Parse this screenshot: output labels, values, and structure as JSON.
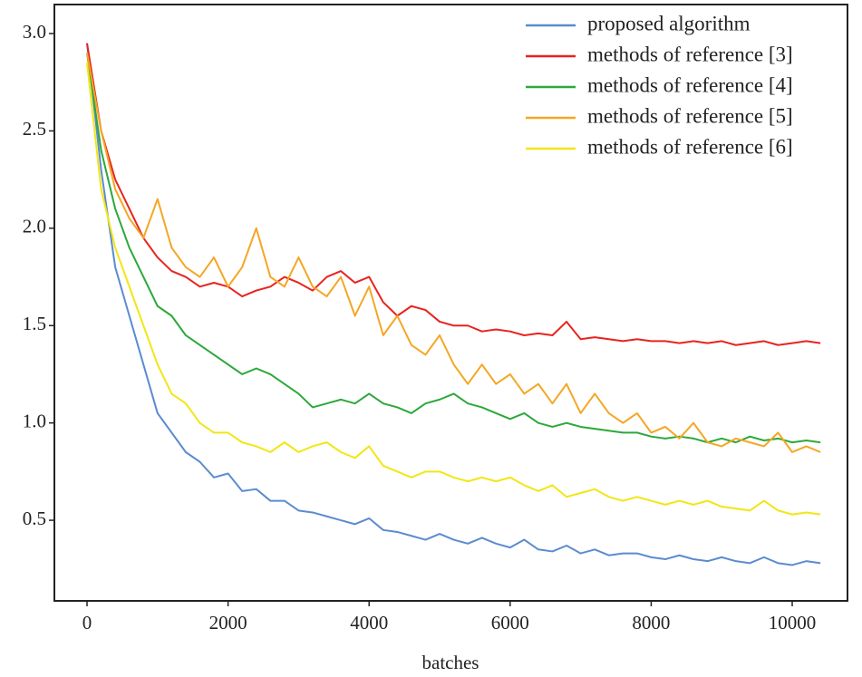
{
  "chart_data": {
    "type": "line",
    "x_label": "batches",
    "x": [
      0,
      200,
      400,
      600,
      800,
      1000,
      1200,
      1400,
      1600,
      1800,
      2000,
      2200,
      2400,
      2600,
      2800,
      3000,
      3200,
      3400,
      3600,
      3800,
      4000,
      4200,
      4400,
      4600,
      4800,
      5000,
      5200,
      5400,
      5600,
      5800,
      6000,
      6200,
      6400,
      6600,
      6800,
      7000,
      7200,
      7400,
      7600,
      7800,
      8000,
      8200,
      8400,
      8600,
      8800,
      9000,
      9200,
      9400,
      9600,
      9800,
      10000,
      10200,
      10400
    ],
    "series": [
      {
        "name": "proposed algorithm",
        "color": "#5b8bd0",
        "values": [
          2.95,
          2.3,
          1.8,
          1.55,
          1.3,
          1.05,
          0.95,
          0.85,
          0.8,
          0.72,
          0.74,
          0.65,
          0.66,
          0.6,
          0.6,
          0.55,
          0.54,
          0.52,
          0.5,
          0.48,
          0.51,
          0.45,
          0.44,
          0.42,
          0.4,
          0.43,
          0.4,
          0.38,
          0.41,
          0.38,
          0.36,
          0.4,
          0.35,
          0.34,
          0.37,
          0.33,
          0.35,
          0.32,
          0.33,
          0.33,
          0.31,
          0.3,
          0.32,
          0.3,
          0.29,
          0.31,
          0.29,
          0.28,
          0.31,
          0.28,
          0.27,
          0.29,
          0.28
        ]
      },
      {
        "name": "methods of reference [3]",
        "color": "#e8231f",
        "values": [
          2.95,
          2.5,
          2.25,
          2.1,
          1.95,
          1.85,
          1.78,
          1.75,
          1.7,
          1.72,
          1.7,
          1.65,
          1.68,
          1.7,
          1.75,
          1.72,
          1.68,
          1.75,
          1.78,
          1.72,
          1.75,
          1.62,
          1.55,
          1.6,
          1.58,
          1.52,
          1.5,
          1.5,
          1.47,
          1.48,
          1.47,
          1.45,
          1.46,
          1.45,
          1.52,
          1.43,
          1.44,
          1.43,
          1.42,
          1.43,
          1.42,
          1.42,
          1.41,
          1.42,
          1.41,
          1.42,
          1.4,
          1.41,
          1.42,
          1.4,
          1.41,
          1.42,
          1.41
        ]
      },
      {
        "name": "methods of reference [4]",
        "color": "#2ca83a",
        "values": [
          2.9,
          2.4,
          2.1,
          1.9,
          1.75,
          1.6,
          1.55,
          1.45,
          1.4,
          1.35,
          1.3,
          1.25,
          1.28,
          1.25,
          1.2,
          1.15,
          1.08,
          1.1,
          1.12,
          1.1,
          1.15,
          1.1,
          1.08,
          1.05,
          1.1,
          1.12,
          1.15,
          1.1,
          1.08,
          1.05,
          1.02,
          1.05,
          1.0,
          0.98,
          1.0,
          0.98,
          0.97,
          0.96,
          0.95,
          0.95,
          0.93,
          0.92,
          0.93,
          0.92,
          0.9,
          0.92,
          0.9,
          0.93,
          0.91,
          0.92,
          0.9,
          0.91,
          0.9
        ]
      },
      {
        "name": "methods of reference [5]",
        "color": "#f5a623",
        "values": [
          2.9,
          2.5,
          2.2,
          2.05,
          1.95,
          2.15,
          1.9,
          1.8,
          1.75,
          1.85,
          1.7,
          1.8,
          2.0,
          1.75,
          1.7,
          1.85,
          1.7,
          1.65,
          1.75,
          1.55,
          1.7,
          1.45,
          1.55,
          1.4,
          1.35,
          1.45,
          1.3,
          1.2,
          1.3,
          1.2,
          1.25,
          1.15,
          1.2,
          1.1,
          1.2,
          1.05,
          1.15,
          1.05,
          1.0,
          1.05,
          0.95,
          0.98,
          0.92,
          1.0,
          0.9,
          0.88,
          0.92,
          0.9,
          0.88,
          0.95,
          0.85,
          0.88,
          0.85
        ]
      },
      {
        "name": "methods of reference [6]",
        "color": "#f2e614",
        "values": [
          2.85,
          2.2,
          1.9,
          1.7,
          1.5,
          1.3,
          1.15,
          1.1,
          1.0,
          0.95,
          0.95,
          0.9,
          0.88,
          0.85,
          0.9,
          0.85,
          0.88,
          0.9,
          0.85,
          0.82,
          0.88,
          0.78,
          0.75,
          0.72,
          0.75,
          0.75,
          0.72,
          0.7,
          0.72,
          0.7,
          0.72,
          0.68,
          0.65,
          0.68,
          0.62,
          0.64,
          0.66,
          0.62,
          0.6,
          0.62,
          0.6,
          0.58,
          0.6,
          0.58,
          0.6,
          0.57,
          0.56,
          0.55,
          0.6,
          0.55,
          0.53,
          0.54,
          0.53
        ]
      }
    ],
    "xlim": [
      -463,
      10784
    ],
    "ylim": [
      0.086,
      3.149
    ],
    "xticks": [
      0,
      2000,
      4000,
      6000,
      8000,
      10000
    ],
    "yticks": [
      0.5,
      {
        "value": 1,
        "label": "1.0"
      },
      1.5,
      {
        "value": 2,
        "label": "2.0"
      },
      2.5,
      {
        "value": 3,
        "label": "3.0"
      }
    ],
    "legend": "upper right"
  }
}
